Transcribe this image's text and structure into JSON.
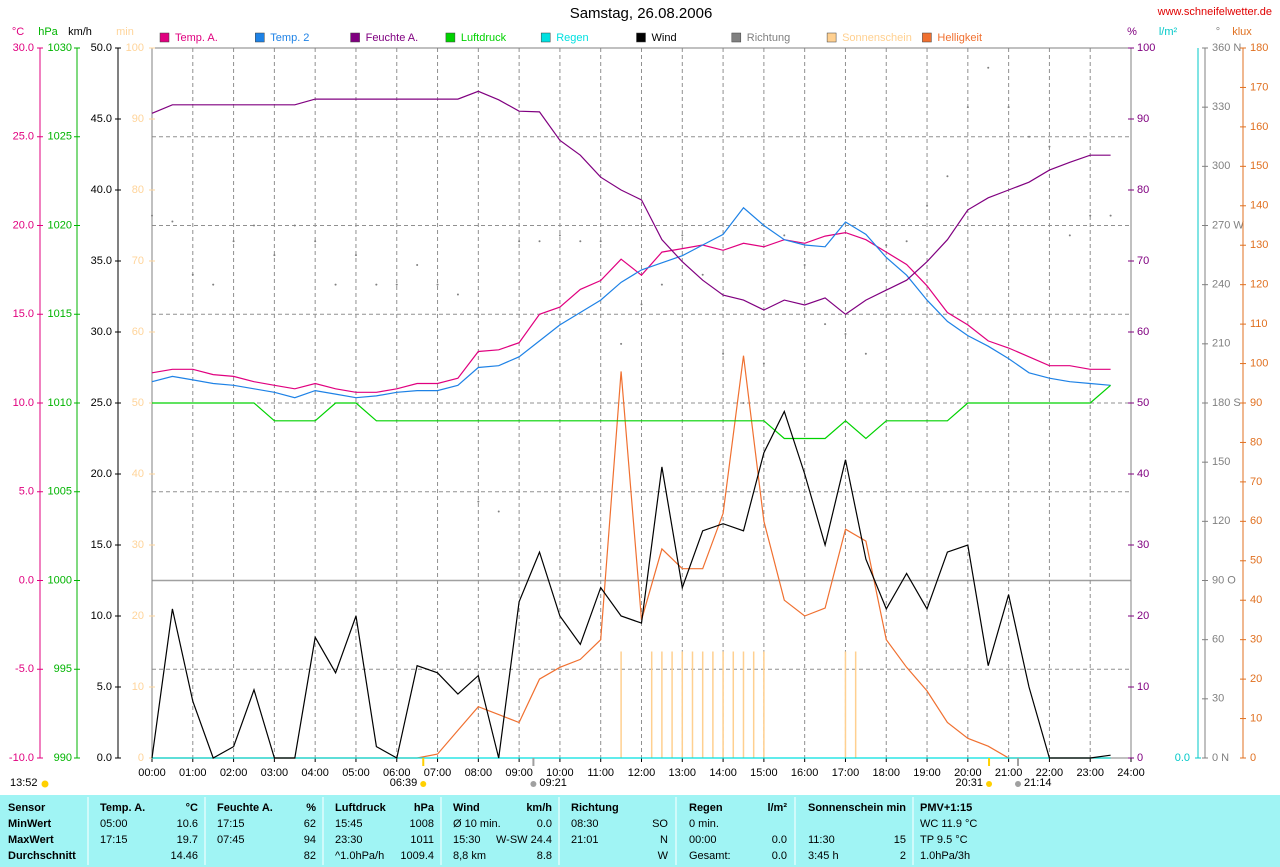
{
  "chart_data": {
    "type": "line",
    "title": "Samstag, 26.08.2006",
    "source": "www.schneifelwetter.de",
    "updated": "13:52",
    "grid": true,
    "x": [
      0,
      0.5,
      1,
      1.5,
      2,
      2.5,
      3,
      3.5,
      4,
      4.5,
      5,
      5.5,
      6,
      6.5,
      7,
      7.5,
      8,
      8.5,
      9,
      9.5,
      10,
      10.5,
      11,
      11.5,
      12,
      12.5,
      13,
      13.5,
      14,
      14.5,
      15,
      15.5,
      16,
      16.5,
      17,
      17.5,
      18,
      18.5,
      19,
      19.5,
      20,
      20.5,
      21,
      21.5,
      22,
      22.5,
      23,
      23.5
    ],
    "xlim": [
      0,
      24
    ],
    "xticks": [
      {
        "value": 0,
        "label": "00:00"
      },
      {
        "value": 1,
        "label": "01:00"
      },
      {
        "value": 2,
        "label": "02:00"
      },
      {
        "value": 3,
        "label": "03:00"
      },
      {
        "value": 4,
        "label": "04:00"
      },
      {
        "value": 5,
        "label": "05:00"
      },
      {
        "value": 6,
        "label": "06:00"
      },
      {
        "value": 7,
        "label": "07:00"
      },
      {
        "value": 8,
        "label": "08:00"
      },
      {
        "value": 9,
        "label": "09:00"
      },
      {
        "value": 10,
        "label": "10:00"
      },
      {
        "value": 11,
        "label": "11:00"
      },
      {
        "value": 12,
        "label": "12:00"
      },
      {
        "value": 13,
        "label": "13:00"
      },
      {
        "value": 14,
        "label": "14:00"
      },
      {
        "value": 15,
        "label": "15:00"
      },
      {
        "value": 16,
        "label": "16:00"
      },
      {
        "value": 17,
        "label": "17:00"
      },
      {
        "value": 18,
        "label": "18:00"
      },
      {
        "value": 19,
        "label": "19:00"
      },
      {
        "value": 20,
        "label": "20:00"
      },
      {
        "value": 21,
        "label": "21:00"
      },
      {
        "value": 22,
        "label": "22:00"
      },
      {
        "value": 23,
        "label": "23:00"
      },
      {
        "value": 24,
        "label": "24:00"
      }
    ],
    "axes": [
      {
        "unit": "°C",
        "color": "#e0007f",
        "lim": [
          -10,
          30
        ],
        "ticks": [
          {
            "value": -10,
            "label": "-10.0"
          },
          {
            "value": -5,
            "label": "-5.0"
          },
          {
            "value": 0,
            "label": "0.0"
          },
          {
            "value": 5,
            "label": "5.0"
          },
          {
            "value": 10,
            "label": "10.0"
          },
          {
            "value": 15,
            "label": "15.0"
          },
          {
            "value": 20,
            "label": "20.0"
          },
          {
            "value": 25,
            "label": "25.0"
          },
          {
            "value": 30,
            "label": "30.0"
          }
        ]
      },
      {
        "unit": "hPa",
        "color": "#00b400",
        "lim": [
          990,
          1030
        ],
        "ticks": [
          990,
          995,
          1000,
          1005,
          1010,
          1015,
          1020,
          1025,
          1030
        ]
      },
      {
        "unit": "km/h",
        "color": "#000000",
        "lim": [
          0,
          50
        ],
        "ticks": [
          {
            "value": 0,
            "label": "0.0"
          },
          {
            "value": 5,
            "label": "5.0"
          },
          {
            "value": 10,
            "label": "10.0"
          },
          {
            "value": 15,
            "label": "15.0"
          },
          {
            "value": 20,
            "label": "20.0"
          },
          {
            "value": 25,
            "label": "25.0"
          },
          {
            "value": 30,
            "label": "30.0"
          },
          {
            "value": 35,
            "label": "35.0"
          },
          {
            "value": 40,
            "label": "40.0"
          },
          {
            "value": 45,
            "label": "45.0"
          },
          {
            "value": 50,
            "label": "50.0"
          }
        ]
      },
      {
        "unit": "min",
        "color": "#ffd49a",
        "lim": [
          0,
          100
        ],
        "ticks": [
          0,
          10,
          20,
          30,
          40,
          50,
          60,
          70,
          80,
          90,
          100
        ]
      },
      {
        "unit": "%",
        "color": "#800080",
        "lim": [
          0,
          100
        ],
        "ticks": [
          0,
          10,
          20,
          30,
          40,
          50,
          60,
          70,
          80,
          90,
          100
        ]
      },
      {
        "unit": "l/m²",
        "color": "#00c8c8",
        "lim": [
          0,
          10
        ],
        "ticks": [
          {
            "value": 0,
            "label": "0.0"
          }
        ]
      },
      {
        "unit": "°",
        "color": "#808080",
        "lim": [
          0,
          360
        ],
        "ticks": [
          {
            "value": 0,
            "label": "0 N"
          },
          30,
          60,
          {
            "value": 90,
            "label": "90 O"
          },
          120,
          150,
          {
            "value": 180,
            "label": "180 S"
          },
          210,
          240,
          {
            "value": 270,
            "label": "270 W"
          },
          300,
          330,
          {
            "value": 360,
            "label": "360 N"
          }
        ]
      },
      {
        "unit": "klux",
        "color": "#e07020",
        "lim": [
          0,
          180
        ],
        "ticks": [
          0,
          10,
          20,
          30,
          40,
          50,
          60,
          70,
          80,
          90,
          100,
          110,
          120,
          130,
          140,
          150,
          160,
          170,
          180
        ]
      }
    ],
    "series": [
      {
        "name": "Temp. A.",
        "color": "#e0007f",
        "type": "line",
        "axis": "°C",
        "values": [
          11.7,
          11.9,
          11.9,
          11.6,
          11.5,
          11.2,
          11.0,
          10.8,
          11.1,
          10.8,
          10.6,
          10.6,
          10.8,
          11.1,
          11.1,
          11.4,
          12.9,
          13.0,
          13.4,
          15.0,
          15.4,
          16.4,
          16.9,
          18.1,
          17.2,
          18.5,
          18.7,
          18.9,
          18.6,
          19.0,
          18.8,
          19.2,
          19.0,
          19.4,
          19.6,
          19.2,
          18.5,
          17.8,
          16.6,
          15.1,
          14.4,
          13.5,
          13.1,
          12.6,
          12.1,
          12.1,
          11.9,
          11.9
        ]
      },
      {
        "name": "Temp. 2",
        "color": "#1e82e6",
        "type": "line",
        "axis": "°C",
        "values": [
          11.2,
          11.5,
          11.3,
          11.1,
          11.0,
          10.8,
          10.6,
          10.3,
          10.7,
          10.5,
          10.3,
          10.4,
          10.6,
          10.7,
          10.7,
          11.0,
          12.0,
          12.1,
          12.6,
          13.5,
          14.4,
          15.1,
          15.8,
          16.8,
          17.5,
          17.9,
          18.3,
          18.9,
          19.5,
          21.0,
          20.0,
          19.2,
          18.9,
          18.8,
          20.2,
          19.5,
          18.2,
          17.2,
          15.8,
          14.6,
          13.8,
          13.2,
          12.5,
          11.7,
          11.4,
          11.2,
          11.1,
          11.0
        ]
      },
      {
        "name": "Feuchte A.",
        "color": "#800080",
        "type": "line",
        "axis": "%",
        "values": [
          90.8,
          92.0,
          92.0,
          92.0,
          92.0,
          92.0,
          92.0,
          92.0,
          92.8,
          92.8,
          92.8,
          92.8,
          92.8,
          92.8,
          92.8,
          92.8,
          93.9,
          92.7,
          91.1,
          91.0,
          87.0,
          84.9,
          81.8,
          80.0,
          78.6,
          73.0,
          69.9,
          67.3,
          65.2,
          64.5,
          63.1,
          64.5,
          63.8,
          64.8,
          62.5,
          64.5,
          65.9,
          67.3,
          69.9,
          73.0,
          77.2,
          78.9,
          80.0,
          81.1,
          82.8,
          83.9,
          84.9,
          84.9
        ]
      },
      {
        "name": "Luftdruck",
        "color": "#00d200",
        "type": "line",
        "axis": "hPa",
        "values": [
          1010,
          1010,
          1010,
          1010,
          1010,
          1010,
          1009,
          1009,
          1009,
          1010,
          1010,
          1009,
          1009,
          1009,
          1009,
          1009,
          1009,
          1009,
          1009,
          1009,
          1009,
          1009,
          1009,
          1009,
          1009,
          1009,
          1009,
          1009,
          1009,
          1009,
          1009,
          1008,
          1008,
          1008,
          1009,
          1008,
          1009,
          1009,
          1009,
          1009,
          1010,
          1010,
          1010,
          1010,
          1010,
          1010,
          1010,
          1011
        ]
      },
      {
        "name": "Regen",
        "color": "#00e0e0",
        "type": "line",
        "axis": "l/m²",
        "values": [
          0,
          0,
          0,
          0,
          0,
          0,
          0,
          0,
          0,
          0,
          0,
          0,
          0,
          0,
          0,
          0,
          0,
          0,
          0,
          0,
          0,
          0,
          0,
          0,
          0,
          0,
          0,
          0,
          0,
          0,
          0,
          0,
          0,
          0,
          0,
          0,
          0,
          0,
          0,
          0,
          0,
          0,
          0,
          0,
          0,
          0,
          0,
          0
        ]
      },
      {
        "name": "Wind",
        "color": "#000000",
        "type": "line",
        "axis": "km/h",
        "values": [
          0,
          10.5,
          4.0,
          0,
          0.8,
          4.8,
          0,
          0,
          8.5,
          6.0,
          10.0,
          0.8,
          0,
          6.5,
          6.0,
          4.5,
          5.8,
          0,
          11.0,
          14.5,
          10.0,
          8.0,
          12.0,
          10.0,
          9.5,
          20.5,
          12.0,
          16.0,
          16.5,
          16.0,
          21.5,
          24.4,
          20.0,
          15.0,
          21.0,
          14.0,
          10.5,
          13.0,
          10.5,
          14.5,
          15.0,
          6.5,
          11.5,
          5.0,
          0,
          0,
          0,
          0.2
        ]
      },
      {
        "name": "Richtung",
        "color": "#808080",
        "type": "scatter",
        "axis": "°",
        "values": [
          275,
          272,
          245,
          240,
          262,
          270,
          255,
          270,
          262,
          240,
          255,
          240,
          240,
          250,
          240,
          235,
          130,
          125,
          262,
          262,
          265,
          262,
          262,
          210,
          230,
          240,
          265,
          245,
          205,
          180,
          200,
          265,
          250,
          220,
          215,
          205,
          260,
          262,
          280,
          295,
          330,
          350,
          330,
          315,
          310,
          265,
          275,
          275
        ]
      },
      {
        "name": "Sonnenschein",
        "color": "#ffd090",
        "type": "bar",
        "axis": "min",
        "x": [
          11.5,
          12.25,
          12.5,
          12.75,
          13,
          13.25,
          13.5,
          13.75,
          14,
          14.25,
          14.5,
          14.75,
          15,
          17,
          17.25
        ],
        "values": [
          15,
          15,
          15,
          15,
          15,
          15,
          15,
          15,
          15,
          15,
          15,
          15,
          15,
          15,
          15
        ]
      },
      {
        "name": "Helligkeit",
        "color": "#f07030",
        "type": "line",
        "axis": "klux",
        "values": [
          0,
          0,
          0,
          0,
          0,
          0,
          0,
          0,
          0,
          0,
          0,
          0,
          0,
          0,
          1,
          7,
          13,
          11,
          9,
          20,
          23,
          25,
          30,
          98,
          35,
          53,
          48,
          48,
          62,
          102,
          60,
          40,
          36,
          38,
          58,
          55,
          30,
          23,
          17,
          9,
          5,
          3,
          0,
          0,
          0,
          0,
          0,
          0
        ]
      }
    ],
    "annotations": [
      {
        "label": "06:39",
        "x": 6.65,
        "color": "#ffd000"
      },
      {
        "label": "09:21",
        "x": 9.35,
        "color": "#a0a0a0"
      },
      {
        "label": "20:31",
        "x": 20.52,
        "color": "#ffd000"
      },
      {
        "label": "21:14",
        "x": 21.23,
        "color": "#a0a0a0"
      }
    ]
  },
  "table": {
    "header": [
      "Sensor",
      "Temp. A.",
      "°C",
      "Feuchte A.",
      "%",
      "Luftdruck",
      "hPa",
      "Wind",
      "km/h",
      "Richtung",
      null,
      "Regen",
      "l/m²",
      "Sonnenschein",
      "min",
      "PMV+1:15"
    ],
    "rows": [
      [
        "MinWert",
        "05:00",
        "10.6",
        "17:15",
        "62",
        "15:45",
        "1008",
        "Ø 10 min.",
        "0.0",
        "08:30",
        "SO",
        "0 min.",
        null,
        null,
        null,
        "WC 11.9 °C"
      ],
      [
        "MaxWert",
        "17:15",
        "19.7",
        "07:45",
        "94",
        "23:30",
        "1011",
        "15:30",
        "W-SW 24.4",
        "21:01",
        "N",
        "00:00",
        "0.0",
        "11:30",
        "15",
        "TP 9.5 °C"
      ],
      [
        "Durchschnitt",
        null,
        "14.46",
        null,
        "82",
        "^1.0hPa/h",
        "1009.4",
        "8,8 km",
        "8.8",
        null,
        "W",
        "Gesamt:",
        "0.0",
        "3:45 h",
        "2",
        "1.0hPa/3h"
      ]
    ]
  }
}
